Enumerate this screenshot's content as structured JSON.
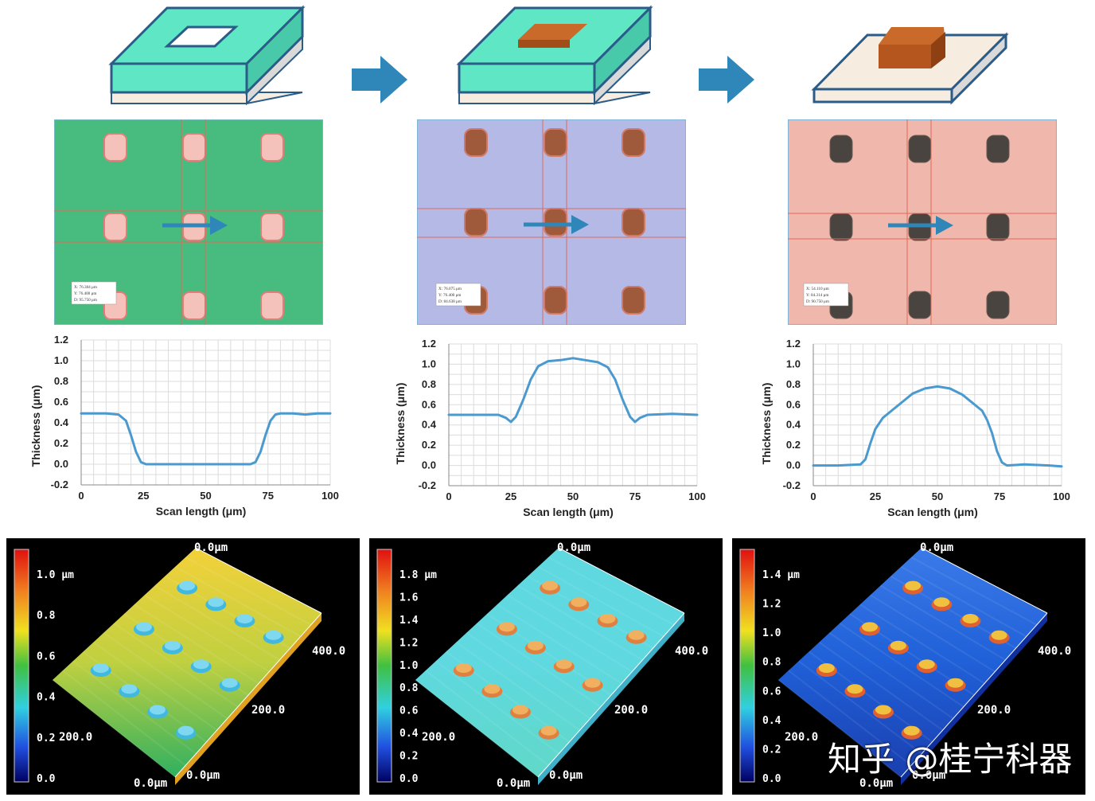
{
  "colors": {
    "resist": "#5fe6c4",
    "substrate": "#f7ece0",
    "metal": "#b5561e",
    "arrow": "#2f86b8",
    "curve": "#4a9ad0",
    "micro_green": "#3eb57a",
    "micro_blue": "#b4b9e6",
    "micro_pink": "#f0b8ac"
  },
  "process_steps": [
    {
      "name": "patterned photoresist with opening"
    },
    {
      "name": "metal deposited in opening"
    },
    {
      "name": "photoresist lifted off"
    }
  ],
  "micrographs": [
    {
      "readout": [
        "X: 76.304 μm",
        "Y: 76.400 μm",
        "D: 95.750 μm"
      ]
    },
    {
      "readout": [
        "X: 76.075 μm",
        "Y: 76.400 μm",
        "D: 84.638 μm"
      ]
    },
    {
      "readout": [
        "X: 54.110 μm",
        "Y: 84.314 μm",
        "D: 90.750 μm"
      ]
    }
  ],
  "chart_data": [
    {
      "type": "line",
      "xlabel": "Scan length (μm)",
      "ylabel": "Thickness (μm)",
      "xlim": [
        0,
        100
      ],
      "ylim": [
        -0.2,
        1.2
      ],
      "xticks": [
        "0",
        "25",
        "50",
        "75",
        "100"
      ],
      "yticks": [
        "1.2",
        "1.0",
        "0.8",
        "0.6",
        "0.4",
        "0.2",
        "0.0",
        "-0.2"
      ],
      "grid": true,
      "x": [
        0,
        5,
        10,
        15,
        18,
        20,
        22,
        24,
        26,
        30,
        40,
        50,
        60,
        68,
        70,
        72,
        74,
        76,
        78,
        80,
        85,
        90,
        95,
        100
      ],
      "y": [
        0.49,
        0.49,
        0.49,
        0.48,
        0.42,
        0.28,
        0.12,
        0.02,
        0.0,
        0.0,
        0.0,
        0.0,
        0.0,
        0.0,
        0.02,
        0.12,
        0.28,
        0.42,
        0.48,
        0.49,
        0.49,
        0.48,
        0.49,
        0.49
      ]
    },
    {
      "type": "line",
      "xlabel": "Scan length (μm)",
      "ylabel": "Thickness (μm)",
      "xlim": [
        0,
        100
      ],
      "ylim": [
        -0.2,
        1.2
      ],
      "xticks": [
        "0",
        "25",
        "50",
        "75",
        "100"
      ],
      "yticks": [
        "1.2",
        "1.0",
        "0.8",
        "0.6",
        "0.4",
        "0.2",
        "0.0",
        "-0.2"
      ],
      "grid": true,
      "x": [
        0,
        10,
        20,
        23,
        25,
        27,
        30,
        33,
        36,
        40,
        45,
        50,
        55,
        60,
        64,
        67,
        70,
        73,
        75,
        77,
        80,
        90,
        100
      ],
      "y": [
        0.5,
        0.5,
        0.5,
        0.47,
        0.43,
        0.48,
        0.65,
        0.85,
        0.98,
        1.03,
        1.04,
        1.06,
        1.04,
        1.02,
        0.97,
        0.85,
        0.65,
        0.48,
        0.43,
        0.47,
        0.5,
        0.51,
        0.5
      ]
    },
    {
      "type": "line",
      "xlabel": "Scan length (μm)",
      "ylabel": "Thickness (μm)",
      "xlim": [
        0,
        100
      ],
      "ylim": [
        -0.2,
        1.2
      ],
      "xticks": [
        "0",
        "25",
        "50",
        "75",
        "100"
      ],
      "yticks": [
        "1.2",
        "1.0",
        "0.8",
        "0.6",
        "0.4",
        "0.2",
        "0.0",
        "-0.2"
      ],
      "grid": true,
      "x": [
        0,
        10,
        19,
        21,
        23,
        25,
        28,
        32,
        36,
        40,
        45,
        50,
        55,
        60,
        64,
        68,
        70,
        72,
        74,
        76,
        78,
        85,
        95,
        100
      ],
      "y": [
        0.0,
        0.0,
        0.01,
        0.06,
        0.22,
        0.36,
        0.47,
        0.55,
        0.63,
        0.71,
        0.76,
        0.78,
        0.76,
        0.7,
        0.62,
        0.54,
        0.45,
        0.32,
        0.14,
        0.03,
        0.0,
        0.01,
        0.0,
        -0.01
      ]
    }
  ],
  "profiles_3d": [
    {
      "colorbar_ticks": [
        "1.0 μm",
        "0.8",
        "0.6",
        "0.4",
        "0.2",
        "0.0"
      ],
      "axis_labels": {
        "top": "0.0μm",
        "side": "400.0",
        "mid": "200.0",
        "left": "200.0",
        "corner_left": "0.0μm",
        "corner_right": "0.0μm"
      }
    },
    {
      "colorbar_ticks": [
        "1.8 μm",
        "1.6",
        "1.4",
        "1.2",
        "1.0",
        "0.8",
        "0.6",
        "0.4",
        "0.2",
        "0.0"
      ],
      "axis_labels": {
        "top": "0.0μm",
        "side": "400.0",
        "mid": "200.0",
        "left": "200.0",
        "corner_left": "0.0μm",
        "corner_right": "0.0μm"
      }
    },
    {
      "colorbar_ticks": [
        "1.4 μm",
        "1.2",
        "1.0",
        "0.8",
        "0.6",
        "0.4",
        "0.2",
        "0.0"
      ],
      "axis_labels": {
        "top": "0.0μm",
        "side": "400.0",
        "mid": "200.0",
        "left": "200.0",
        "corner_left": "0.0μm",
        "corner_right": "0.0μm"
      }
    }
  ],
  "watermark": "知乎 @桂宁科器"
}
